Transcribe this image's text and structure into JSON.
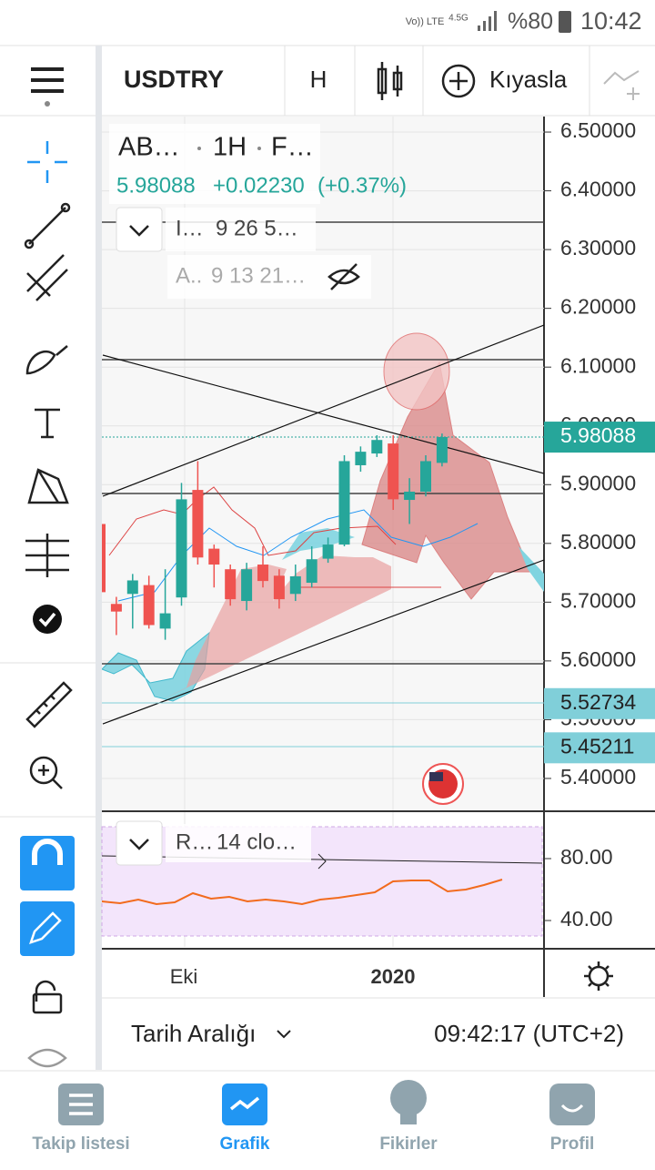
{
  "status_bar": {
    "network": "Vo)) LTE",
    "signal": "4.5G",
    "battery": "%80",
    "time": "10:42"
  },
  "toolbar": {
    "symbol": "USDTRY",
    "interval": "H",
    "compare": "Kıyasla"
  },
  "legend": {
    "symbol": "AB…",
    "interval": "1H",
    "exchange": "F…",
    "price": "5.98088",
    "change": "+0.02230",
    "change_pct": "(+0.37%)",
    "indicator1_name": "I…",
    "indicator1_params": "9 26 5…",
    "indicator2_name": "A..",
    "indicator2_params": "9 13 21…"
  },
  "chart": {
    "ylim": [
      5.3457,
      6.5264
    ],
    "yticks": [
      {
        "value": 6.5,
        "label": "6.50000"
      },
      {
        "value": 6.4,
        "label": "6.40000"
      },
      {
        "value": 6.3,
        "label": "6.30000"
      },
      {
        "value": 6.2,
        "label": "6.20000"
      },
      {
        "value": 6.1,
        "label": "6.10000"
      },
      {
        "value": 6.0,
        "label": "6.00000"
      },
      {
        "value": 5.9,
        "label": "5.90000"
      },
      {
        "value": 5.8,
        "label": "5.80000"
      },
      {
        "value": 5.7,
        "label": "5.70000"
      },
      {
        "value": 5.6,
        "label": "5.60000"
      },
      {
        "value": 5.5,
        "label": "5.50000"
      },
      {
        "value": 5.4,
        "label": "5.40000"
      }
    ],
    "up_color": "#26a69a",
    "down_color": "#ef5350",
    "candles": [
      {
        "open": 5.833,
        "high": 5.84,
        "low": 5.717,
        "close": 5.717
      },
      {
        "open": 5.697,
        "high": 5.709,
        "low": 5.644,
        "close": 5.684
      },
      {
        "open": 5.714,
        "high": 5.748,
        "low": 5.655,
        "close": 5.737
      },
      {
        "open": 5.729,
        "high": 5.745,
        "low": 5.655,
        "close": 5.661
      },
      {
        "open": 5.655,
        "high": 5.756,
        "low": 5.636,
        "close": 5.681
      },
      {
        "open": 5.708,
        "high": 5.903,
        "low": 5.694,
        "close": 5.875
      },
      {
        "open": 5.891,
        "high": 5.94,
        "low": 5.764,
        "close": 5.776
      },
      {
        "open": 5.791,
        "high": 5.798,
        "low": 5.725,
        "close": 5.764
      },
      {
        "open": 5.756,
        "high": 5.764,
        "low": 5.694,
        "close": 5.705
      },
      {
        "open": 5.702,
        "high": 5.767,
        "low": 5.686,
        "close": 5.756
      },
      {
        "open": 5.764,
        "high": 5.795,
        "low": 5.725,
        "close": 5.736
      },
      {
        "open": 5.745,
        "high": 5.756,
        "low": 5.689,
        "close": 5.705
      },
      {
        "open": 5.714,
        "high": 5.764,
        "low": 5.702,
        "close": 5.744
      },
      {
        "open": 5.733,
        "high": 5.795,
        "low": 5.725,
        "close": 5.773
      },
      {
        "open": 5.774,
        "high": 5.81,
        "low": 5.767,
        "close": 5.798
      },
      {
        "open": 5.798,
        "high": 5.95,
        "low": 5.795,
        "close": 5.94
      },
      {
        "open": 5.933,
        "high": 5.965,
        "low": 5.922,
        "close": 5.956
      },
      {
        "open": 5.953,
        "high": 5.984,
        "low": 5.947,
        "close": 5.976
      },
      {
        "open": 5.97,
        "high": 5.984,
        "low": 5.857,
        "close": 5.875
      },
      {
        "open": 5.874,
        "high": 5.911,
        "low": 5.833,
        "close": 5.888
      },
      {
        "open": 5.888,
        "high": 5.95,
        "low": 5.88,
        "close": 5.94
      },
      {
        "open": 5.937,
        "high": 5.987,
        "low": 5.931,
        "close": 5.981
      }
    ],
    "badges": [
      {
        "value": 5.98088,
        "label": "5.98088",
        "color": "#26a69a"
      },
      {
        "value": 5.52734,
        "label": "5.52734",
        "color": "#80cfd9"
      },
      {
        "value": 5.45211,
        "label": "5.45211",
        "color": "#80cfd9"
      }
    ]
  },
  "rsi": {
    "name": "R…",
    "params": "14 clo…",
    "ticks": [
      "80.00",
      "40.00"
    ]
  },
  "time_axis": {
    "labels": [
      "Eki",
      "2020"
    ]
  },
  "range_bar": {
    "label": "Tarih Aralığı",
    "clock": "09:42:17 (UTC+2)"
  },
  "nav": [
    "Takip listesi",
    "Grafik",
    "Fikirler",
    "Profil"
  ]
}
